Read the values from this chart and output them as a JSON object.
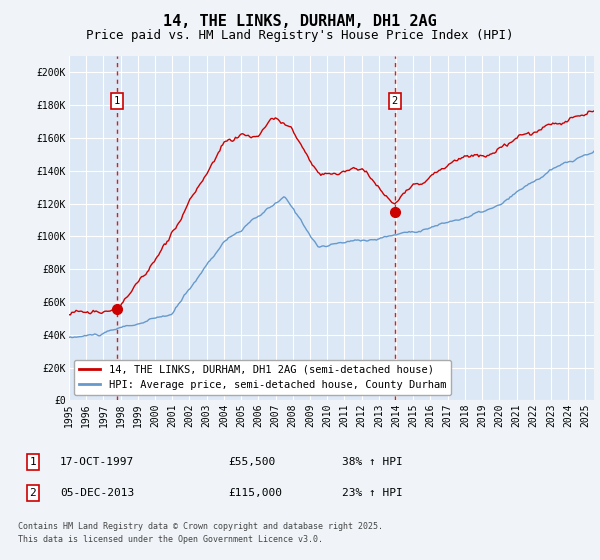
{
  "title": "14, THE LINKS, DURHAM, DH1 2AG",
  "subtitle": "Price paid vs. HM Land Registry's House Price Index (HPI)",
  "ylabel_ticks": [
    "£0",
    "£20K",
    "£40K",
    "£60K",
    "£80K",
    "£100K",
    "£120K",
    "£140K",
    "£160K",
    "£180K",
    "£200K"
  ],
  "ytick_values": [
    0,
    20000,
    40000,
    60000,
    80000,
    100000,
    120000,
    140000,
    160000,
    180000,
    200000
  ],
  "ylim": [
    0,
    210000
  ],
  "xlim_start": 1995.0,
  "xlim_end": 2025.5,
  "x_tick_years": [
    1995,
    1996,
    1997,
    1998,
    1999,
    2000,
    2001,
    2002,
    2003,
    2004,
    2005,
    2006,
    2007,
    2008,
    2009,
    2010,
    2011,
    2012,
    2013,
    2014,
    2015,
    2016,
    2017,
    2018,
    2019,
    2020,
    2021,
    2022,
    2023,
    2024,
    2025
  ],
  "fig_bg_color": "#f0f4f8",
  "plot_bg_color": "#dce8f5",
  "grid_color": "#ffffff",
  "red_line_color": "#cc0000",
  "blue_line_color": "#6699cc",
  "marker1_x": 1997.8,
  "marker1_y": 55500,
  "marker2_x": 2013.92,
  "marker2_y": 115000,
  "legend_red_label": "14, THE LINKS, DURHAM, DH1 2AG (semi-detached house)",
  "legend_blue_label": "HPI: Average price, semi-detached house, County Durham",
  "note1_date": "17-OCT-1997",
  "note1_price": "£55,500",
  "note1_change": "38% ↑ HPI",
  "note2_date": "05-DEC-2013",
  "note2_price": "£115,000",
  "note2_change": "23% ↑ HPI",
  "footer": "Contains HM Land Registry data © Crown copyright and database right 2025.\nThis data is licensed under the Open Government Licence v3.0.",
  "title_fontsize": 11,
  "subtitle_fontsize": 9,
  "tick_fontsize": 7,
  "legend_fontsize": 7.5,
  "note_fontsize": 8,
  "footer_fontsize": 6
}
